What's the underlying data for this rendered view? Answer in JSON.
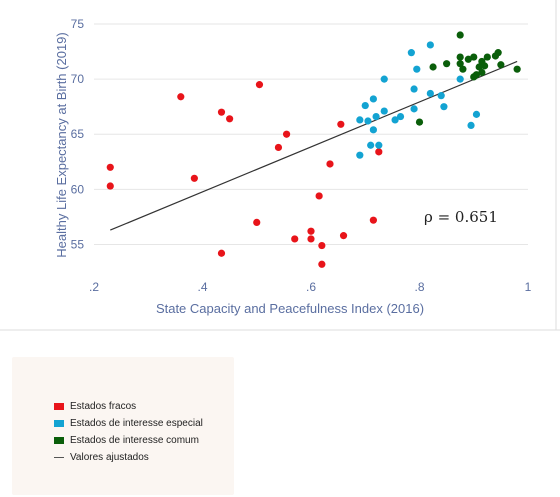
{
  "chart_data": {
    "type": "scatter",
    "xlabel": "State Capacity and Peacefulness Index (2016)",
    "ylabel": "Healthy Life Expectancy at Birth (2019)",
    "xlim": [
      0.2,
      1.0
    ],
    "ylim": [
      52.5,
      75
    ],
    "xticks": [
      0.2,
      0.4,
      0.6,
      0.8,
      1.0
    ],
    "xtick_labels": [
      ".2",
      ".4",
      ".6",
      ".8",
      "1"
    ],
    "yticks": [
      55,
      60,
      65,
      70,
      75
    ],
    "ytick_labels": [
      "55",
      "60",
      "65",
      "70",
      "75"
    ],
    "grid": "horizontal",
    "annotation": "ρ = 0.651",
    "fit_line": {
      "name": "Valores ajustados",
      "color": "#333333",
      "x": [
        0.23,
        0.98
      ],
      "y": [
        56.3,
        71.6
      ]
    },
    "series": [
      {
        "name": "Estados fracos",
        "color": "#e8141a",
        "points": [
          [
            0.23,
            62.0
          ],
          [
            0.23,
            60.3
          ],
          [
            0.36,
            68.4
          ],
          [
            0.385,
            61.0
          ],
          [
            0.435,
            67.0
          ],
          [
            0.45,
            66.4
          ],
          [
            0.435,
            54.2
          ],
          [
            0.5,
            57.0
          ],
          [
            0.505,
            69.5
          ],
          [
            0.54,
            63.8
          ],
          [
            0.555,
            65.0
          ],
          [
            0.57,
            55.5
          ],
          [
            0.6,
            56.2
          ],
          [
            0.6,
            55.5
          ],
          [
            0.615,
            59.4
          ],
          [
            0.62,
            54.9
          ],
          [
            0.62,
            53.2
          ],
          [
            0.635,
            62.3
          ],
          [
            0.655,
            65.9
          ],
          [
            0.66,
            55.8
          ],
          [
            0.715,
            57.2
          ],
          [
            0.725,
            63.4
          ]
        ]
      },
      {
        "name": "Estados de interesse especial",
        "color": "#13a3d2",
        "points": [
          [
            0.69,
            63.1
          ],
          [
            0.69,
            66.3
          ],
          [
            0.7,
            67.6
          ],
          [
            0.705,
            66.2
          ],
          [
            0.71,
            64.0
          ],
          [
            0.715,
            68.2
          ],
          [
            0.715,
            65.4
          ],
          [
            0.72,
            66.6
          ],
          [
            0.725,
            64.0
          ],
          [
            0.735,
            67.1
          ],
          [
            0.735,
            70.0
          ],
          [
            0.755,
            66.3
          ],
          [
            0.765,
            66.6
          ],
          [
            0.785,
            72.4
          ],
          [
            0.79,
            67.3
          ],
          [
            0.79,
            69.1
          ],
          [
            0.795,
            70.9
          ],
          [
            0.82,
            73.1
          ],
          [
            0.82,
            68.7
          ],
          [
            0.84,
            68.5
          ],
          [
            0.845,
            67.5
          ],
          [
            0.875,
            70.0
          ],
          [
            0.895,
            65.8
          ],
          [
            0.905,
            66.8
          ]
        ]
      },
      {
        "name": "Estados de interesse comum",
        "color": "#0a5e0a",
        "points": [
          [
            0.8,
            66.1
          ],
          [
            0.825,
            71.1
          ],
          [
            0.85,
            71.4
          ],
          [
            0.875,
            74.0
          ],
          [
            0.875,
            72.0
          ],
          [
            0.875,
            71.4
          ],
          [
            0.88,
            70.9
          ],
          [
            0.89,
            71.8
          ],
          [
            0.9,
            72.0
          ],
          [
            0.9,
            70.2
          ],
          [
            0.905,
            70.4
          ],
          [
            0.91,
            71.1
          ],
          [
            0.915,
            70.6
          ],
          [
            0.915,
            71.6
          ],
          [
            0.92,
            71.2
          ],
          [
            0.925,
            72.0
          ],
          [
            0.94,
            72.1
          ],
          [
            0.945,
            72.4
          ],
          [
            0.95,
            71.3
          ],
          [
            0.98,
            70.9
          ]
        ]
      }
    ],
    "legend": [
      {
        "label": "Estados fracos",
        "color": "#e8141a",
        "kind": "swatch"
      },
      {
        "label": "Estados de interesse especial",
        "color": "#13a3d2",
        "kind": "swatch"
      },
      {
        "label": "Estados de interesse comum",
        "color": "#0a5e0a",
        "kind": "swatch"
      },
      {
        "label": "Valores ajustados",
        "color": "#555555",
        "kind": "line"
      }
    ]
  }
}
